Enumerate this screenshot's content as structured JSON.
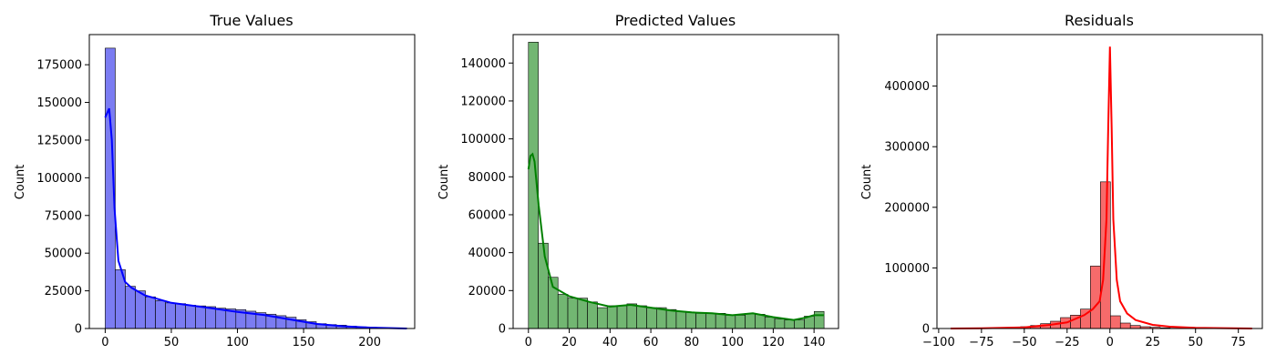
{
  "chart_data": [
    {
      "type": "bar",
      "title": "True Values",
      "xlabel": "",
      "ylabel": "Count",
      "xlim": [
        -12,
        234
      ],
      "ylim": [
        0,
        195000
      ],
      "xticks": [
        0,
        50,
        100,
        150,
        200
      ],
      "yticks": [
        0,
        25000,
        50000,
        75000,
        100000,
        125000,
        150000,
        175000
      ],
      "bar_color": "#7b7cf2",
      "kde_color": "#0000ff",
      "bin_start": 0,
      "bin_width": 7.6,
      "values": [
        186000,
        39000,
        28000,
        25000,
        21000,
        18500,
        17000,
        16500,
        15500,
        15000,
        14500,
        13500,
        13000,
        12500,
        11500,
        10500,
        9500,
        8500,
        7500,
        5800,
        4500,
        3200,
        2600,
        2200,
        1600,
        1100,
        800,
        500,
        400,
        300
      ],
      "kde_x": [
        0,
        3,
        5,
        7,
        10,
        15,
        20,
        30,
        50,
        80,
        100,
        120,
        140,
        160,
        180,
        200,
        228
      ],
      "kde_y": [
        140000,
        146000,
        125000,
        80000,
        45000,
        31000,
        27000,
        22000,
        17000,
        13500,
        11000,
        9000,
        6000,
        3000,
        1500,
        600,
        0
      ]
    },
    {
      "type": "bar",
      "title": "Predicted Values",
      "xlabel": "",
      "ylabel": "Count",
      "xlim": [
        -7.5,
        152
      ],
      "ylim": [
        0,
        155000
      ],
      "xticks": [
        0,
        20,
        40,
        60,
        80,
        100,
        120,
        140
      ],
      "yticks": [
        0,
        20000,
        40000,
        60000,
        80000,
        100000,
        120000,
        140000
      ],
      "bar_color": "#72b672",
      "kde_color": "#008000",
      "bin_start": 0,
      "bin_width": 4.83,
      "values": [
        151000,
        45000,
        27000,
        18000,
        16000,
        16000,
        14000,
        11000,
        12000,
        12000,
        13000,
        12000,
        11000,
        11000,
        10000,
        9000,
        8500,
        8000,
        8000,
        8000,
        7000,
        7000,
        8000,
        7500,
        6000,
        5000,
        4500,
        4500,
        6500,
        9000
      ],
      "kde_x": [
        0,
        1,
        2,
        3,
        5,
        8,
        12,
        20,
        30,
        40,
        50,
        60,
        70,
        80,
        90,
        100,
        110,
        120,
        130,
        135,
        140,
        145
      ],
      "kde_y": [
        84000,
        91000,
        92000,
        88000,
        65000,
        38000,
        22000,
        17000,
        14000,
        11500,
        12500,
        11000,
        9500,
        8500,
        8000,
        7000,
        8000,
        6000,
        4500,
        5500,
        7000,
        7000
      ]
    },
    {
      "type": "bar",
      "title": "Residuals",
      "xlabel": "",
      "ylabel": "Count",
      "xlim": [
        -101,
        89
      ],
      "ylim": [
        0,
        485000
      ],
      "xticks": [
        -100,
        -75,
        -50,
        -25,
        0,
        25,
        50,
        75
      ],
      "yticks": [
        0,
        100000,
        200000,
        300000,
        400000
      ],
      "bar_color": "#f66b6b",
      "kde_color": "#ff0000",
      "bin_start": -93,
      "bin_width": 5.83,
      "values": [
        0,
        0,
        0,
        0,
        500,
        1000,
        2000,
        3000,
        5000,
        8000,
        12000,
        18000,
        22000,
        32000,
        103000,
        242000,
        21000,
        9000,
        5000,
        3000,
        2000,
        1000,
        500,
        0,
        0,
        0,
        0,
        0,
        0,
        0
      ],
      "kde_x": [
        -93,
        -75,
        -50,
        -35,
        -25,
        -15,
        -10,
        -6,
        -4,
        -2,
        -1,
        0,
        1,
        2,
        4,
        6,
        10,
        15,
        25,
        35,
        50,
        83
      ],
      "kde_y": [
        0,
        500,
        2000,
        6000,
        10000,
        22000,
        32000,
        45000,
        80000,
        180000,
        330000,
        465000,
        330000,
        180000,
        80000,
        45000,
        25000,
        14000,
        6000,
        3000,
        1000,
        0
      ]
    }
  ]
}
